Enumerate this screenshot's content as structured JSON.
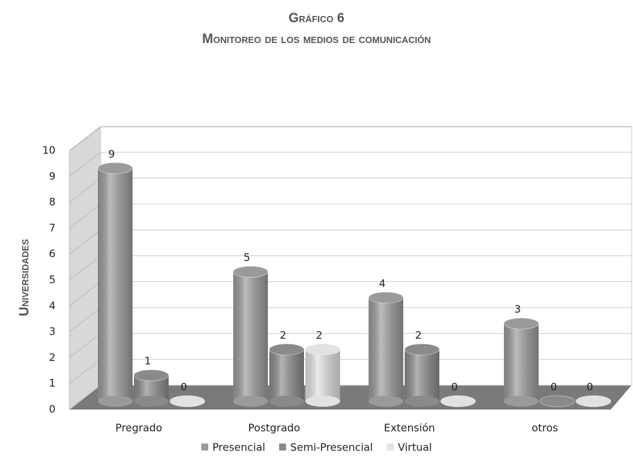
{
  "chart_data": {
    "type": "bar3d",
    "title": "Gráfico 6",
    "subtitle": "Monitoreo de los medios de comunicación",
    "ylabel": "Universidades",
    "categories": [
      "Pregrado",
      "Postgrado",
      "Extensión",
      "otros"
    ],
    "series": [
      {
        "name": "Presencial",
        "color": "#9a9a9a",
        "values": [
          9,
          5,
          4,
          3
        ]
      },
      {
        "name": "Semi-Presencial",
        "color": "#8a8a8a",
        "values": [
          1,
          2,
          2,
          0
        ]
      },
      {
        "name": "Virtual",
        "color": "#e2e2e2",
        "values": [
          0,
          2,
          0,
          0
        ]
      }
    ],
    "ylim": [
      0,
      10
    ],
    "yticks": [
      0,
      1,
      2,
      3,
      4,
      5,
      6,
      7,
      8,
      9,
      10
    ],
    "grid": true,
    "legend": "bottom"
  }
}
